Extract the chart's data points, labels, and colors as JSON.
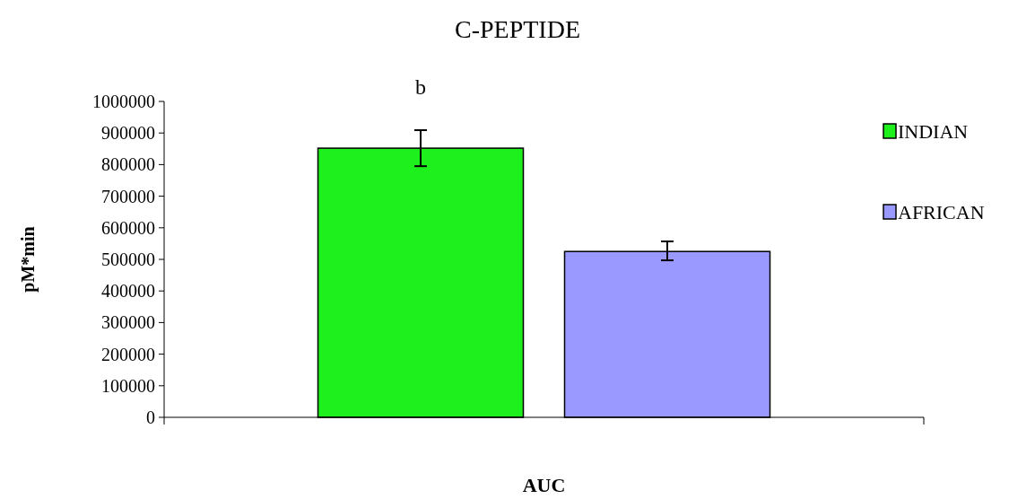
{
  "chart_data": {
    "type": "bar",
    "title": "C-PEPTIDE",
    "xlabel": "AUC",
    "ylabel": "pM*min",
    "categories": [
      null
    ],
    "series": [
      {
        "name": "INDIAN",
        "color": "#1ef01e",
        "values": [
          852000
        ],
        "errors": [
          [
            795000,
            909000
          ]
        ]
      },
      {
        "name": "AFRICAN",
        "color": "#9999ff",
        "values": [
          525000
        ],
        "errors": [
          [
            497000,
            557000
          ]
        ]
      }
    ],
    "ylim": [
      0,
      1000000
    ],
    "yticks": [
      0,
      100000,
      200000,
      300000,
      400000,
      500000,
      600000,
      700000,
      800000,
      900000,
      1000000
    ],
    "annotations": [
      "b"
    ],
    "legend": "right",
    "grid": false
  }
}
